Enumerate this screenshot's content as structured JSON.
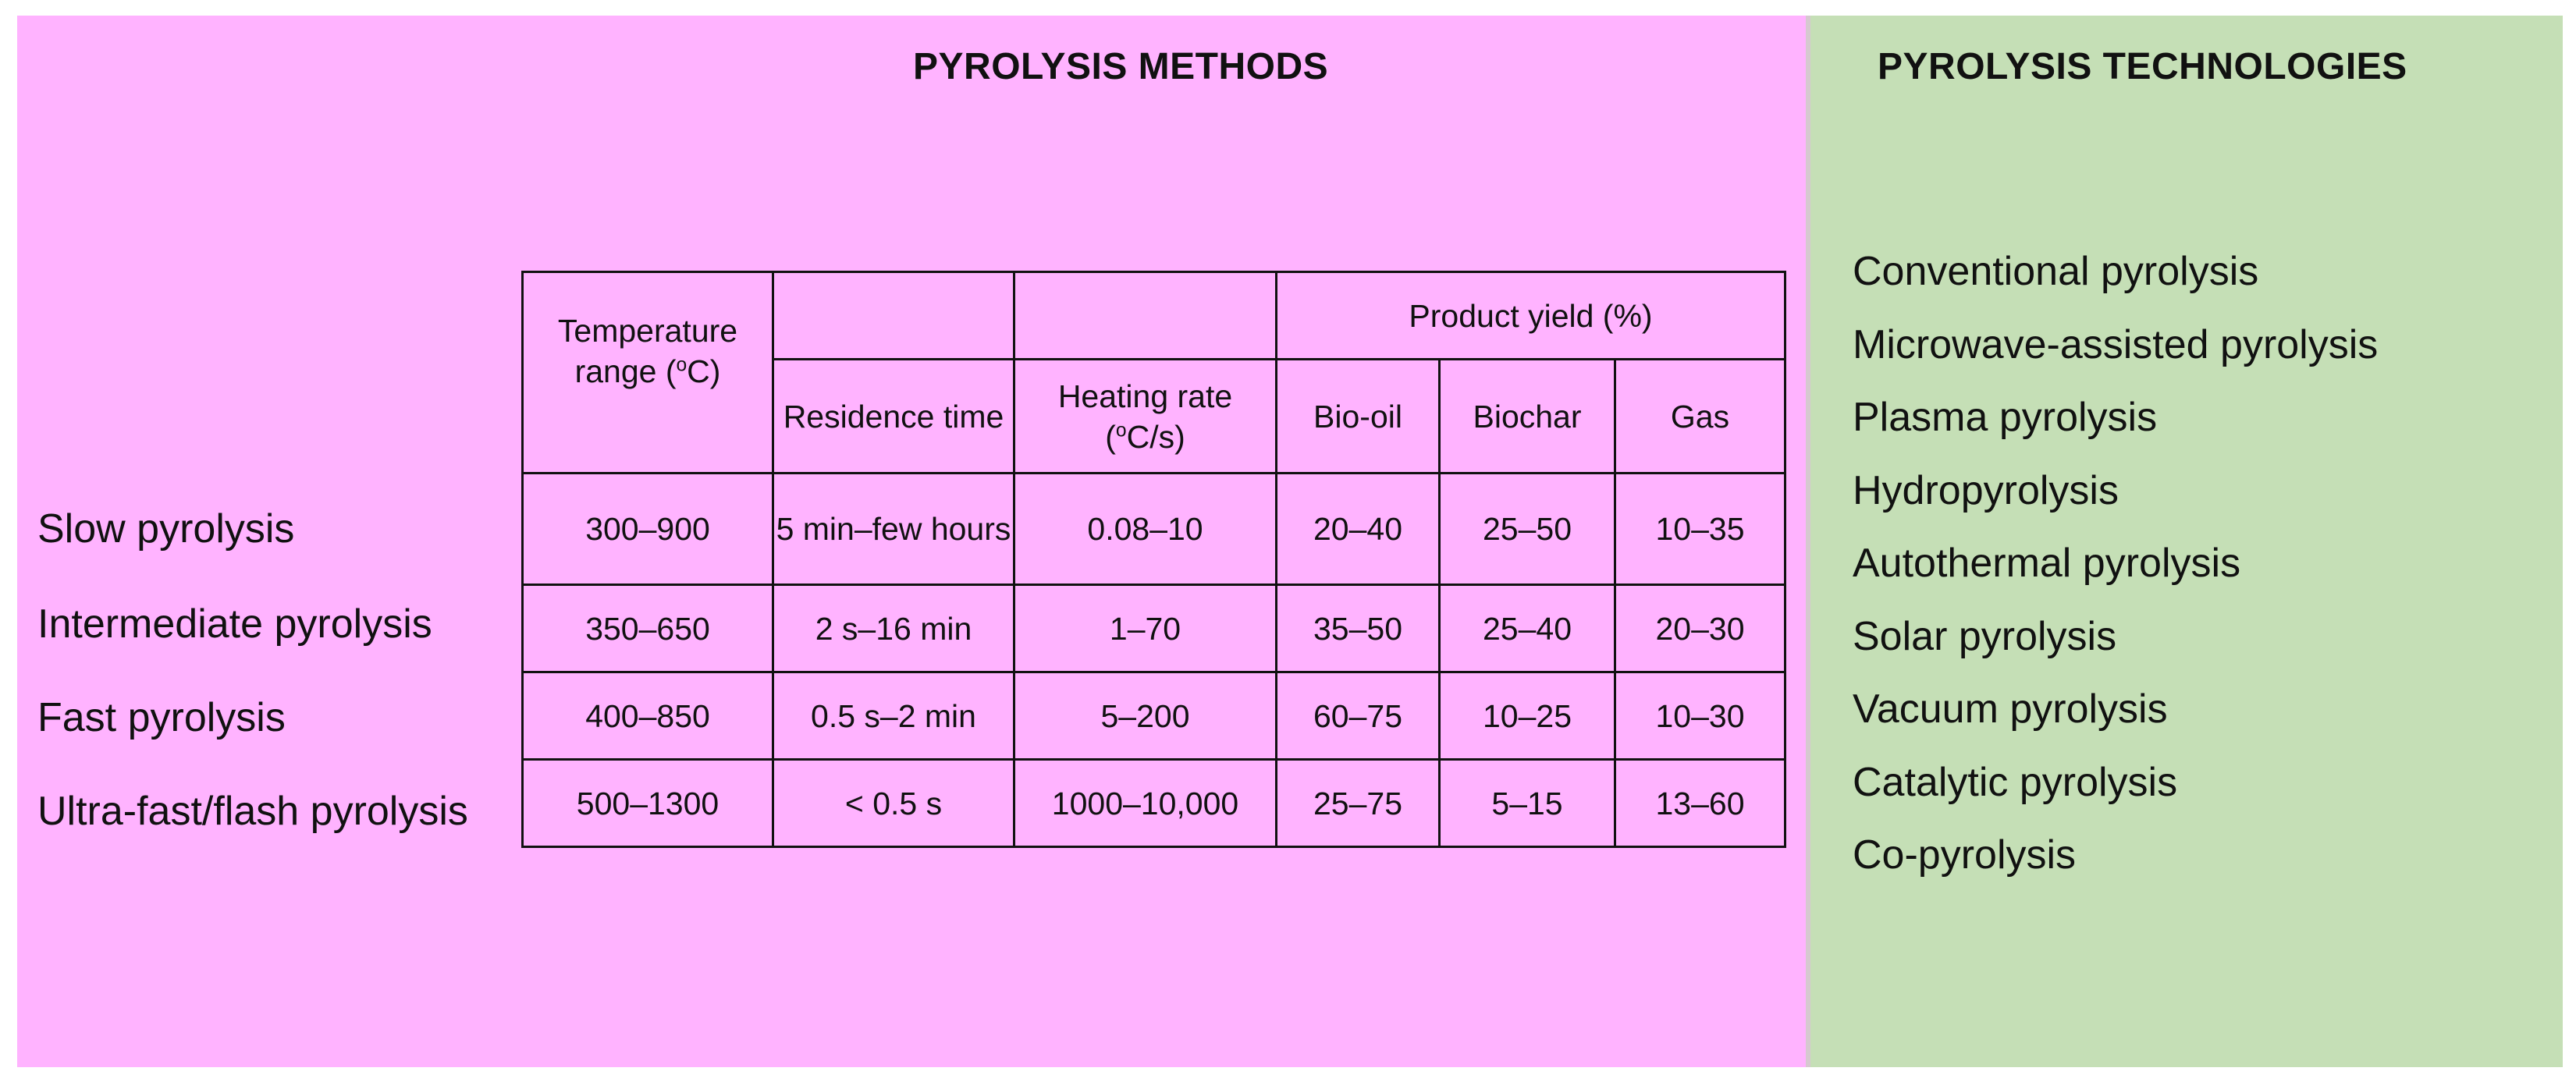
{
  "methods": {
    "title": "PYROLYSIS METHODS",
    "table": {
      "headers": {
        "temperature_range": "Temperature range (",
        "temperature_unit_sup": "o",
        "temperature_unit_tail": "C)",
        "residence_time": "Residence time",
        "heating_rate": "Heating rate (",
        "heating_rate_unit_sup": "o",
        "heating_rate_unit_tail": "C/s)",
        "product_yield": "Product yield (%)",
        "bio_oil": "Bio-oil",
        "biochar": "Biochar",
        "gas": "Gas"
      },
      "rows": [
        {
          "label": "Slow pyrolysis",
          "temperature": "300–900",
          "residence": "5 min–few hours",
          "heating_rate": "0.08–10",
          "bio_oil": "20–40",
          "biochar": "25–50",
          "gas": "10–35"
        },
        {
          "label": "Intermediate pyrolysis",
          "temperature": "350–650",
          "residence": "2 s–16 min",
          "heating_rate": "1–70",
          "bio_oil": "35–50",
          "biochar": "25–40",
          "gas": "20–30"
        },
        {
          "label": "Fast pyrolysis",
          "temperature": "400–850",
          "residence": "0.5 s–2 min",
          "heating_rate": "5–200",
          "bio_oil": "60–75",
          "biochar": "10–25",
          "gas": "10–30"
        },
        {
          "label": "Ultra-fast/flash pyrolysis",
          "temperature": "500–1300",
          "residence": "< 0.5 s",
          "heating_rate": "1000–10,000",
          "bio_oil": "25–75",
          "biochar": "5–15",
          "gas": "13–60"
        }
      ]
    }
  },
  "technologies": {
    "title": "PYROLYSIS TECHNOLOGIES",
    "items": [
      "Conventional pyrolysis",
      "Microwave-assisted pyrolysis",
      "Plasma pyrolysis",
      "Hydropyrolysis",
      "Autothermal pyrolysis",
      "Solar pyrolysis",
      "Vacuum pyrolysis",
      "Catalytic pyrolysis",
      "Co-pyrolysis"
    ]
  },
  "colors": {
    "methods_background": "#ffb3ff",
    "technologies_background": "#c5dfb6",
    "text": "#111111"
  }
}
